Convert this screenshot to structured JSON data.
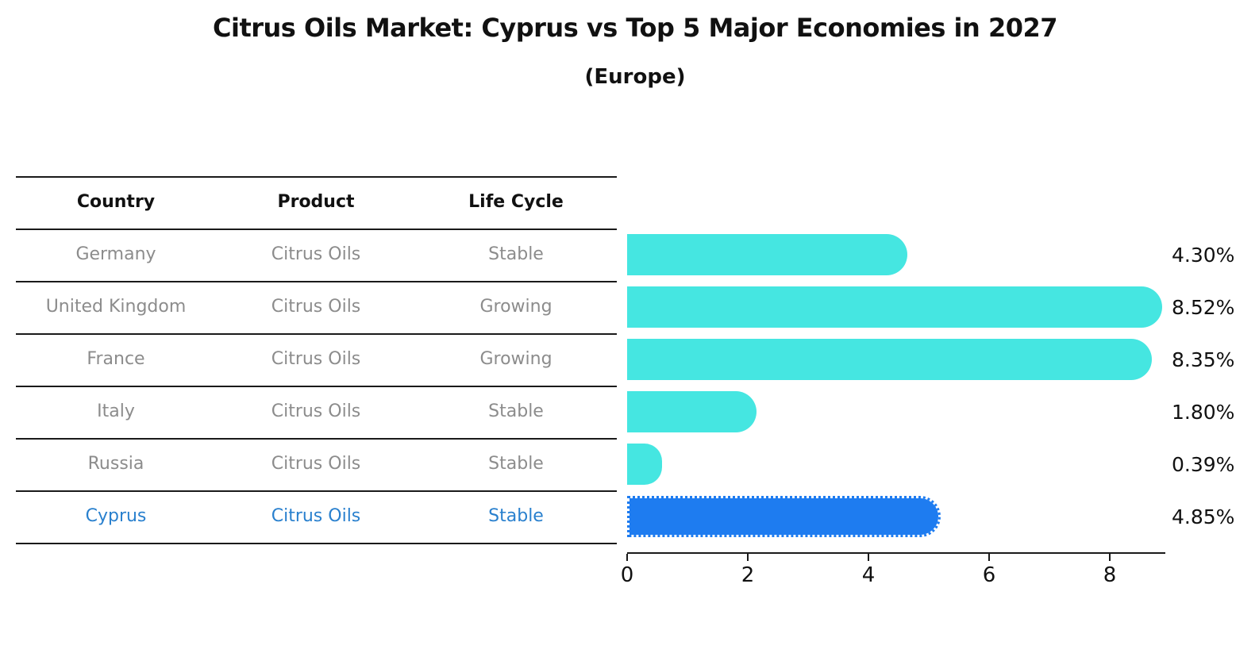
{
  "title": "Citrus Oils Market: Cyprus vs Top 5 Major Economies in 2027",
  "subtitle": "(Europe)",
  "table": {
    "headers": [
      "Country",
      "Product",
      "Life Cycle"
    ],
    "rows": [
      {
        "country": "Germany",
        "product": "Citrus Oils",
        "life_cycle": "Stable",
        "highlighted": false
      },
      {
        "country": "United Kingdom",
        "product": "Citrus Oils",
        "life_cycle": "Growing",
        "highlighted": false
      },
      {
        "country": "France",
        "product": "Citrus Oils",
        "life_cycle": "Growing",
        "highlighted": false
      },
      {
        "country": "Italy",
        "product": "Citrus Oils",
        "life_cycle": "Stable",
        "highlighted": false
      },
      {
        "country": "Russia",
        "product": "Citrus Oils",
        "life_cycle": "Stable",
        "highlighted": false
      },
      {
        "country": "Cyprus",
        "product": "Citrus Oils",
        "life_cycle": "Stable",
        "highlighted": true
      }
    ]
  },
  "chart_data": {
    "type": "bar",
    "orientation": "horizontal",
    "title": "Citrus Oils Market: Cyprus vs Top 5 Major Economies in 2027",
    "subtitle": "(Europe)",
    "categories": [
      "Germany",
      "United Kingdom",
      "France",
      "Italy",
      "Russia",
      "Cyprus"
    ],
    "values": [
      4.3,
      8.52,
      8.35,
      1.8,
      0.39,
      4.85
    ],
    "value_labels": [
      "4.30%",
      "8.52%",
      "8.35%",
      "1.80%",
      "0.39%",
      "4.85%"
    ],
    "unit": "%",
    "xlabel": "",
    "ylabel": "",
    "xticks": [
      0,
      2,
      4,
      6,
      8
    ],
    "xlim": [
      0,
      8.9
    ],
    "grid": false,
    "legend": "none",
    "highlight_index": 5,
    "highlight_category": "Cyprus"
  },
  "colors": {
    "bar": "#45E6E1",
    "highlight_bar": "#1E7CF0",
    "highlight_text": "#2980CE",
    "row_text": "#8C8C8C",
    "ink": "#111111",
    "line": "#1A1A1A",
    "background": "#FFFFFF"
  }
}
